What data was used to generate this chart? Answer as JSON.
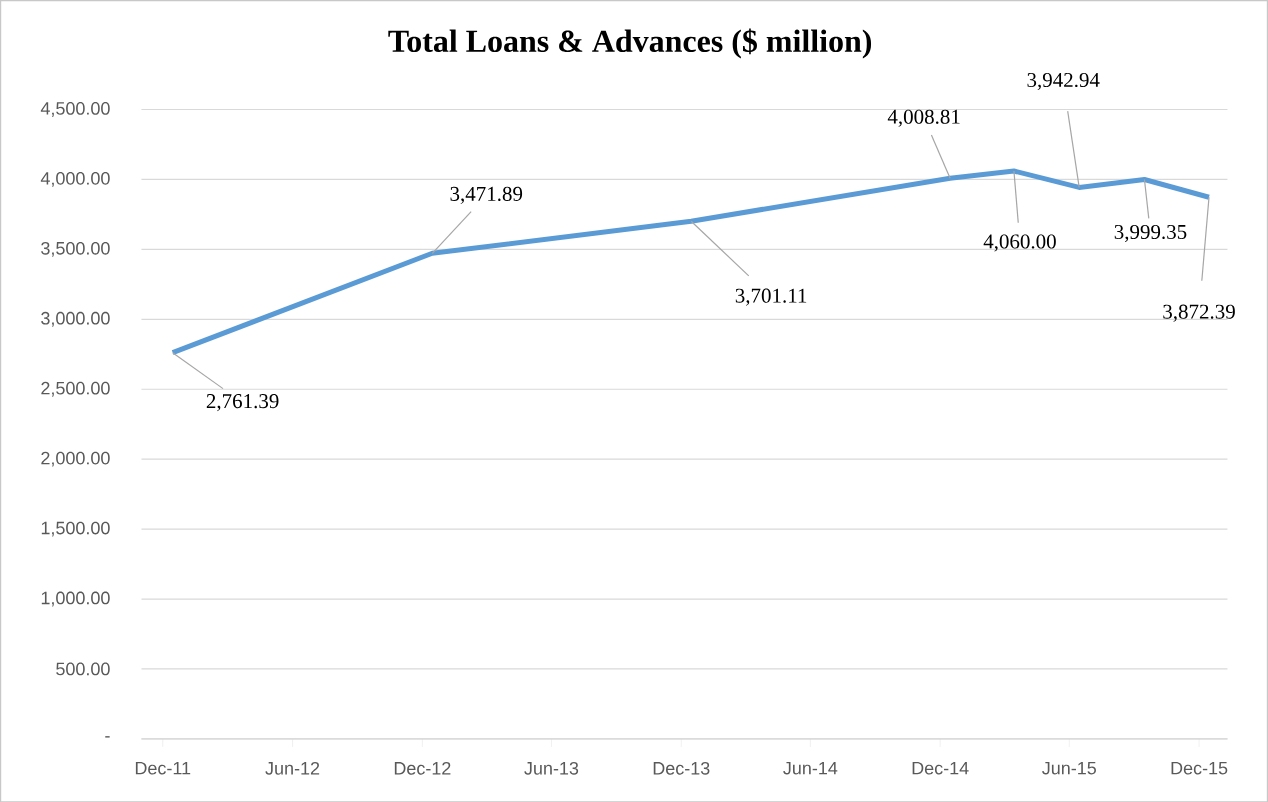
{
  "chart_data": {
    "type": "line",
    "title": "Total Loans & Advances ($ million)",
    "x": [
      "2011-12-15",
      "2012-12-15",
      "2013-12-15",
      "2014-12-15",
      "2015-03-15",
      "2015-06-15",
      "2015-09-15",
      "2015-12-15"
    ],
    "series": [
      {
        "color": "#5b9bd5",
        "values": [
          2761.39,
          3471.89,
          3701.11,
          4008.81,
          4060.0,
          3942.94,
          3999.35,
          3872.39
        ],
        "value_labels": [
          "2,761.39",
          "3,471.89",
          "3,701.11",
          "4,008.81",
          "4,060.00",
          "3,942.94",
          "3,999.35",
          "3,872.39"
        ]
      }
    ],
    "xlim": [
      "2011-11-01",
      "2016-01-10"
    ],
    "xticks": [
      {
        "value": "2011-12-01",
        "label": "Dec-11"
      },
      {
        "value": "2012-06-01",
        "label": "Jun-12"
      },
      {
        "value": "2012-12-01",
        "label": "Dec-12"
      },
      {
        "value": "2013-06-01",
        "label": "Jun-13"
      },
      {
        "value": "2013-12-01",
        "label": "Dec-13"
      },
      {
        "value": "2014-06-01",
        "label": "Jun-14"
      },
      {
        "value": "2014-12-01",
        "label": "Dec-14"
      },
      {
        "value": "2015-06-01",
        "label": "Jun-15"
      },
      {
        "value": "2015-12-01",
        "label": "Dec-15"
      }
    ],
    "ylim": [
      0,
      4500
    ],
    "yticks": [
      {
        "value": 0,
        "label": "-"
      },
      {
        "value": 500,
        "label": "500.00"
      },
      {
        "value": 1000,
        "label": "1,000.00"
      },
      {
        "value": 1500,
        "label": "1,500.00"
      },
      {
        "value": 2000,
        "label": "2,000.00"
      },
      {
        "value": 2500,
        "label": "2,500.00"
      },
      {
        "value": 3000,
        "label": "3,000.00"
      },
      {
        "value": 3500,
        "label": "3,500.00"
      },
      {
        "value": 4000,
        "label": "4,000.00"
      },
      {
        "value": 4500,
        "label": "4,500.00"
      }
    ],
    "grid": "y"
  }
}
